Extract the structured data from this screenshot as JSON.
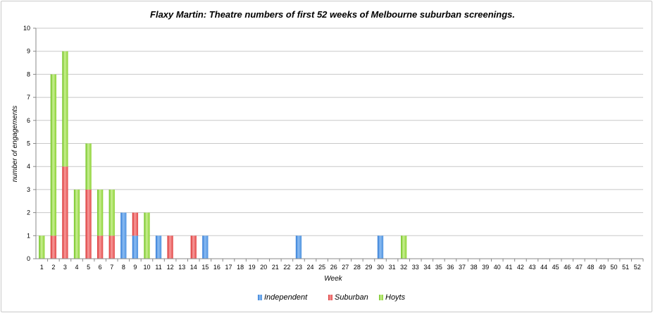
{
  "chart_data": {
    "type": "bar",
    "stacked": true,
    "title": "Flaxy Martin: Theatre numbers of first 52 weeks of Melbourne suburban screenings.",
    "xlabel": "Week",
    "ylabel": "number of engagements",
    "ylim": [
      0,
      10
    ],
    "yticks": [
      "0",
      "1",
      "2",
      "3",
      "4",
      "5",
      "6",
      "7",
      "8",
      "9",
      "10"
    ],
    "grid": true,
    "legend_position": "bottom",
    "categories": [
      "1",
      "2",
      "3",
      "4",
      "5",
      "6",
      "7",
      "8",
      "9",
      "10",
      "11",
      "12",
      "13",
      "14",
      "15",
      "16",
      "17",
      "18",
      "19",
      "20",
      "21",
      "22",
      "23",
      "24",
      "25",
      "26",
      "27",
      "28",
      "29",
      "30",
      "31",
      "32",
      "33",
      "34",
      "35",
      "36",
      "37",
      "38",
      "39",
      "40",
      "41",
      "42",
      "43",
      "44",
      "45",
      "46",
      "47",
      "48",
      "49",
      "50",
      "51",
      "52"
    ],
    "series": [
      {
        "name": "Independent",
        "color": "#4f93e0",
        "values": [
          0,
          0,
          0,
          0,
          0,
          0,
          0,
          2,
          1,
          0,
          1,
          0,
          0,
          0,
          1,
          0,
          0,
          0,
          0,
          0,
          0,
          0,
          1,
          0,
          0,
          0,
          0,
          0,
          0,
          1,
          0,
          0,
          0,
          0,
          0,
          0,
          0,
          0,
          0,
          0,
          0,
          0,
          0,
          0,
          0,
          0,
          0,
          0,
          0,
          0,
          0,
          0
        ]
      },
      {
        "name": "Suburban",
        "color": "#e34b4b",
        "values": [
          0,
          1,
          4,
          0,
          3,
          1,
          1,
          0,
          1,
          0,
          0,
          1,
          0,
          1,
          0,
          0,
          0,
          0,
          0,
          0,
          0,
          0,
          0,
          0,
          0,
          0,
          0,
          0,
          0,
          0,
          0,
          0,
          0,
          0,
          0,
          0,
          0,
          0,
          0,
          0,
          0,
          0,
          0,
          0,
          0,
          0,
          0,
          0,
          0,
          0,
          0,
          0
        ]
      },
      {
        "name": "Hoyts",
        "color": "#8cd236",
        "values": [
          1,
          7,
          5,
          3,
          2,
          2,
          2,
          0,
          0,
          2,
          0,
          0,
          0,
          0,
          0,
          0,
          0,
          0,
          0,
          0,
          0,
          0,
          0,
          0,
          0,
          0,
          0,
          0,
          0,
          0,
          0,
          1,
          0,
          0,
          0,
          0,
          0,
          0,
          0,
          0,
          0,
          0,
          0,
          0,
          0,
          0,
          0,
          0,
          0,
          0,
          0,
          0
        ]
      }
    ]
  }
}
